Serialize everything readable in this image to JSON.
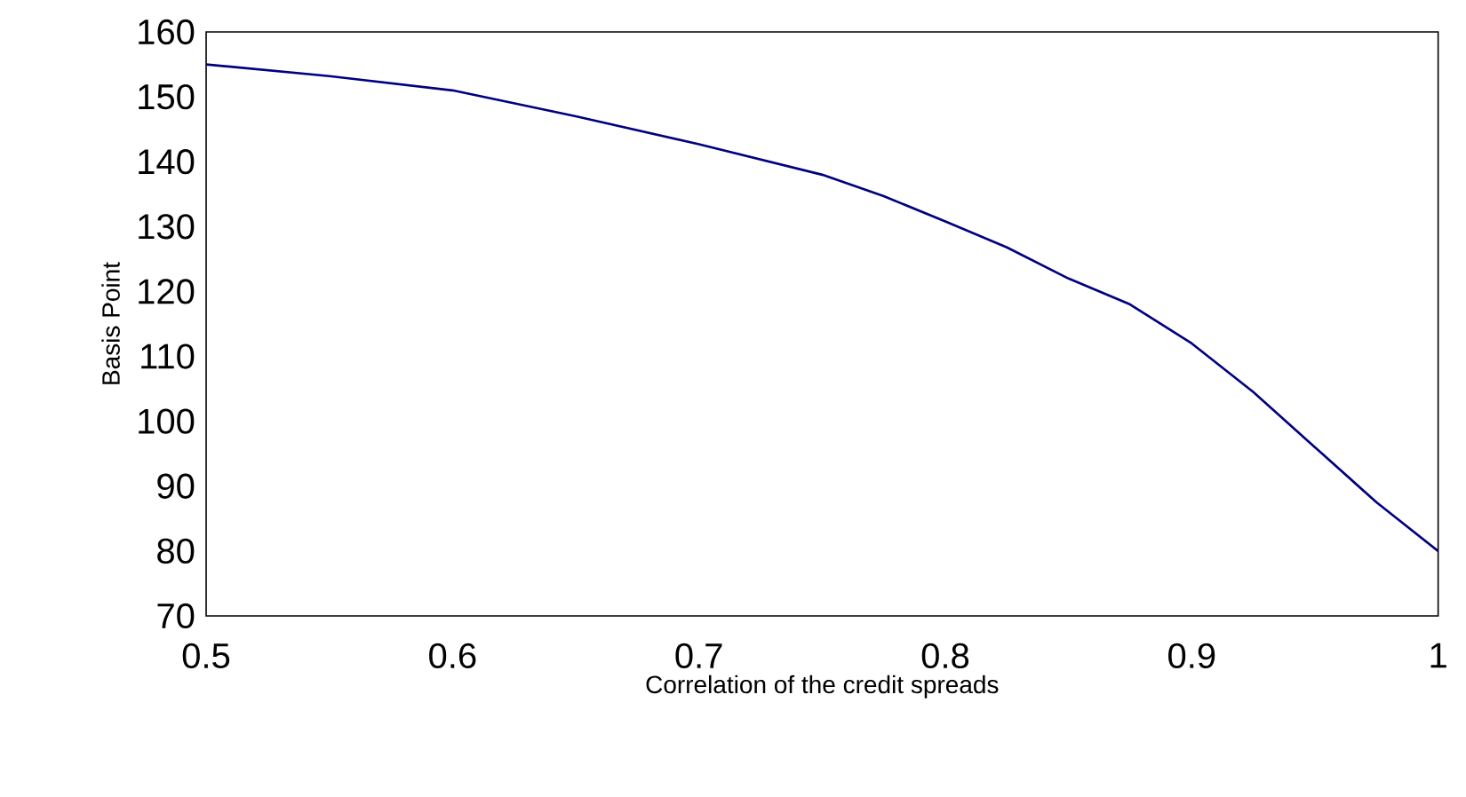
{
  "chart_data": {
    "type": "line",
    "xlabel": "Correlation of the credit spreads",
    "ylabel": "Basis Point",
    "x": [
      0.5,
      0.55,
      0.6,
      0.65,
      0.7,
      0.75,
      0.775,
      0.8,
      0.825,
      0.85,
      0.875,
      0.9,
      0.925,
      0.95,
      0.975,
      1
    ],
    "series": [
      {
        "color": "#000080",
        "values": [
          155,
          153.2,
          151,
          147,
          142.7,
          138,
          134.7,
          130.8,
          126.8,
          122,
          118,
          112,
          104.5,
          96,
          87.5,
          80
        ]
      }
    ],
    "xlim": [
      0.5,
      1
    ],
    "xticks": [
      0.5,
      0.6,
      0.7,
      0.8,
      0.9,
      1
    ],
    "ylim": [
      70,
      160
    ],
    "yticks": [
      70,
      80,
      90,
      100,
      110,
      120,
      130,
      140,
      150,
      160
    ],
    "grid": false,
    "marker": "none",
    "line_style": "solid"
  }
}
